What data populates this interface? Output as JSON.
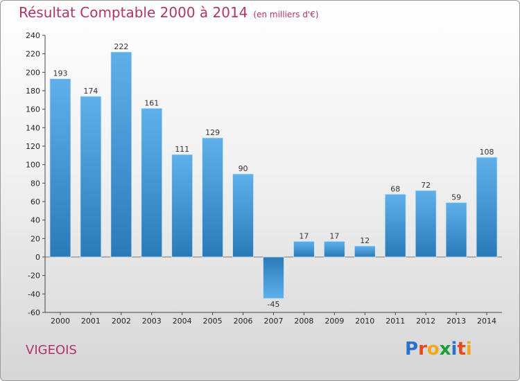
{
  "title": "Résultat Comptable 2000 à 2014",
  "unit": "(en milliers d'€)",
  "commune": "VIGEOIS",
  "logo": {
    "text": "Proxiti",
    "letters": [
      "P",
      "r",
      "o",
      "x",
      "i",
      "t",
      "i"
    ],
    "colors": [
      "#2c6fcf",
      "#e14b1f",
      "#f0a81c",
      "#1a9d3a",
      "#2c6fcf",
      "#e14b1f",
      "#f0a81c"
    ]
  },
  "colors": {
    "bar_top": "#5fb0ea",
    "bar_bottom": "#2a7ab8",
    "accent": "#b0346a"
  },
  "chart_data": {
    "type": "bar",
    "title": "Résultat Comptable 2000 à 2014",
    "subtitle": "(en milliers d'€)",
    "categories": [
      "2000",
      "2001",
      "2002",
      "2003",
      "2004",
      "2005",
      "2006",
      "2007",
      "2008",
      "2009",
      "2010",
      "2011",
      "2012",
      "2013",
      "2014"
    ],
    "values": [
      193,
      174,
      222,
      161,
      111,
      129,
      90,
      -45,
      17,
      17,
      12,
      68,
      72,
      59,
      108
    ],
    "ylim": [
      -60,
      240
    ],
    "yticks": [
      -60,
      -40,
      -20,
      0,
      20,
      40,
      60,
      80,
      100,
      120,
      140,
      160,
      180,
      200,
      220,
      240
    ],
    "grid": false,
    "legend": "none"
  }
}
